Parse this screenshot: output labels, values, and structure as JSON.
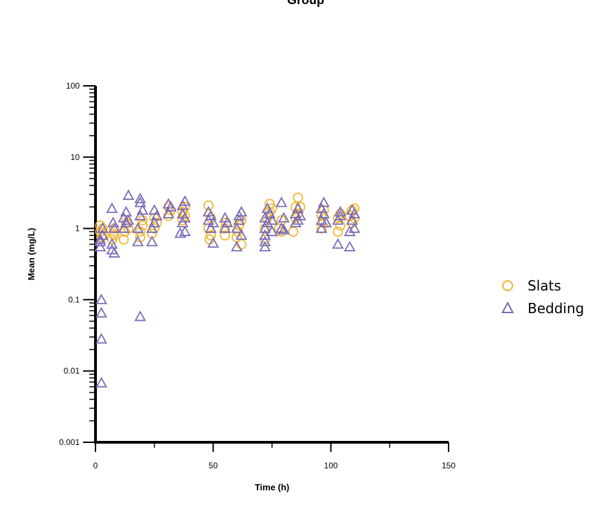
{
  "chart_data": {
    "type": "scatter",
    "title": "Group",
    "xlabel": "Time (h)",
    "ylabel": "Mean (mg/L)",
    "xlim": [
      0,
      150
    ],
    "ylim": [
      0.001,
      100
    ],
    "yscale": "log",
    "xticks": [
      0,
      50,
      100,
      150
    ],
    "xtick_labels": [
      "0",
      "50",
      "100",
      "150"
    ],
    "yticks": [
      0.001,
      0.01,
      0.1,
      1,
      10,
      100
    ],
    "ytick_labels": [
      "0.001",
      "0.01",
      "0.1",
      "1",
      "10",
      "100"
    ],
    "grid": false,
    "legend_position": "right",
    "series": [
      {
        "name": "Slats",
        "marker": "circle",
        "color": "#F2B531",
        "points": [
          [
            2,
            1.1
          ],
          [
            2,
            0.9
          ],
          [
            2.5,
            0.75
          ],
          [
            3,
            0.8
          ],
          [
            3,
            1.0
          ],
          [
            7,
            0.7
          ],
          [
            7.5,
            0.85
          ],
          [
            8,
            1.0
          ],
          [
            8,
            0.8
          ],
          [
            12,
            0.7
          ],
          [
            12.5,
            0.9
          ],
          [
            13,
            1.2
          ],
          [
            14,
            1.0
          ],
          [
            19,
            0.75
          ],
          [
            19,
            0.9
          ],
          [
            20,
            1.1
          ],
          [
            20,
            1.3
          ],
          [
            24,
            0.85
          ],
          [
            25,
            1.0
          ],
          [
            25,
            1.4
          ],
          [
            26,
            1.2
          ],
          [
            31,
            1.5
          ],
          [
            31,
            2.0
          ],
          [
            32,
            1.8
          ],
          [
            37,
            1.3
          ],
          [
            37,
            1.7
          ],
          [
            38,
            2.0
          ],
          [
            38,
            1.5
          ],
          [
            48,
            2.1
          ],
          [
            48,
            1.0
          ],
          [
            48.5,
            0.7
          ],
          [
            49,
            0.8
          ],
          [
            49,
            1.4
          ],
          [
            55,
            0.8
          ],
          [
            55,
            1.0
          ],
          [
            55.5,
            1.2
          ],
          [
            60,
            0.75
          ],
          [
            60.5,
            0.9
          ],
          [
            61,
            1.1
          ],
          [
            62,
            0.6
          ],
          [
            62,
            1.3
          ],
          [
            72,
            0.7
          ],
          [
            72,
            1.0
          ],
          [
            73,
            1.4
          ],
          [
            74,
            2.2
          ],
          [
            74,
            1.7
          ],
          [
            75,
            1.9
          ],
          [
            78,
            1.0
          ],
          [
            79,
            1.3
          ],
          [
            79,
            0.9
          ],
          [
            84,
            0.9
          ],
          [
            85,
            1.4
          ],
          [
            85,
            2.0
          ],
          [
            86,
            2.7
          ],
          [
            86,
            1.6
          ],
          [
            87,
            2.0
          ],
          [
            96,
            1.0
          ],
          [
            96,
            1.5
          ],
          [
            97,
            1.8
          ],
          [
            97,
            1.2
          ],
          [
            103,
            0.9
          ],
          [
            103,
            1.4
          ],
          [
            104,
            1.6
          ],
          [
            104,
            1.1
          ],
          [
            108,
            1.5
          ],
          [
            109,
            1.2
          ],
          [
            109,
            1.8
          ],
          [
            110,
            1.9
          ],
          [
            110,
            1.4
          ]
        ]
      },
      {
        "name": "Bedding",
        "marker": "triangle",
        "color": "#7B6BB5",
        "points": [
          [
            2,
            0.55
          ],
          [
            2,
            0.65
          ],
          [
            2.5,
            0.1
          ],
          [
            2.5,
            0.065
          ],
          [
            2.5,
            0.028
          ],
          [
            2.5,
            0.0068
          ],
          [
            3,
            1.0
          ],
          [
            3,
            0.8
          ],
          [
            2,
            0.7
          ],
          [
            7,
            0.5
          ],
          [
            7,
            0.6
          ],
          [
            7,
            1.9
          ],
          [
            8,
            1.0
          ],
          [
            7.5,
            1.2
          ],
          [
            8,
            0.45
          ],
          [
            12,
            1.0
          ],
          [
            12,
            1.4
          ],
          [
            13,
            1.7
          ],
          [
            13,
            1.2
          ],
          [
            14,
            2.9
          ],
          [
            14,
            1.3
          ],
          [
            18,
            0.65
          ],
          [
            18,
            1.0
          ],
          [
            19,
            1.5
          ],
          [
            19,
            2.3
          ],
          [
            19,
            2.6
          ],
          [
            19,
            0.058
          ],
          [
            20,
            1.8
          ],
          [
            24,
            0.65
          ],
          [
            24,
            1.0
          ],
          [
            25,
            1.2
          ],
          [
            25,
            1.8
          ],
          [
            26,
            1.5
          ],
          [
            31,
            1.6
          ],
          [
            31,
            2.2
          ],
          [
            32,
            2.0
          ],
          [
            36,
            0.85
          ],
          [
            37,
            1.2
          ],
          [
            37,
            1.6
          ],
          [
            37,
            2.1
          ],
          [
            38,
            2.4
          ],
          [
            38,
            1.4
          ],
          [
            38,
            0.9
          ],
          [
            48,
            1.7
          ],
          [
            48,
            1.3
          ],
          [
            49,
            1.0
          ],
          [
            49,
            1.5
          ],
          [
            50,
            0.62
          ],
          [
            50,
            1.2
          ],
          [
            55,
            1.0
          ],
          [
            55,
            1.4
          ],
          [
            56,
            1.2
          ],
          [
            60,
            0.55
          ],
          [
            60,
            1.0
          ],
          [
            61,
            1.5
          ],
          [
            61,
            1.3
          ],
          [
            62,
            1.7
          ],
          [
            62,
            0.8
          ],
          [
            72,
            0.55
          ],
          [
            72,
            0.65
          ],
          [
            72,
            0.8
          ],
          [
            72,
            1.0
          ],
          [
            72,
            1.4
          ],
          [
            73,
            1.9
          ],
          [
            73,
            1.2
          ],
          [
            74,
            1.6
          ],
          [
            75,
            1.3
          ],
          [
            75,
            0.9
          ],
          [
            79,
            2.3
          ],
          [
            79,
            1.0
          ],
          [
            80,
            1.4
          ],
          [
            80,
            0.95
          ],
          [
            85,
            1.2
          ],
          [
            85,
            1.6
          ],
          [
            86,
            1.9
          ],
          [
            86,
            1.3
          ],
          [
            87,
            1.5
          ],
          [
            96,
            1.0
          ],
          [
            96,
            1.3
          ],
          [
            96,
            1.9
          ],
          [
            97,
            2.3
          ],
          [
            97,
            1.6
          ],
          [
            98,
            1.2
          ],
          [
            103,
            0.6
          ],
          [
            103,
            1.3
          ],
          [
            104,
            1.7
          ],
          [
            104,
            1.5
          ],
          [
            108,
            0.55
          ],
          [
            108,
            0.9
          ],
          [
            109,
            1.3
          ],
          [
            109,
            1.8
          ],
          [
            110,
            1.0
          ],
          [
            110,
            1.6
          ]
        ]
      }
    ]
  }
}
